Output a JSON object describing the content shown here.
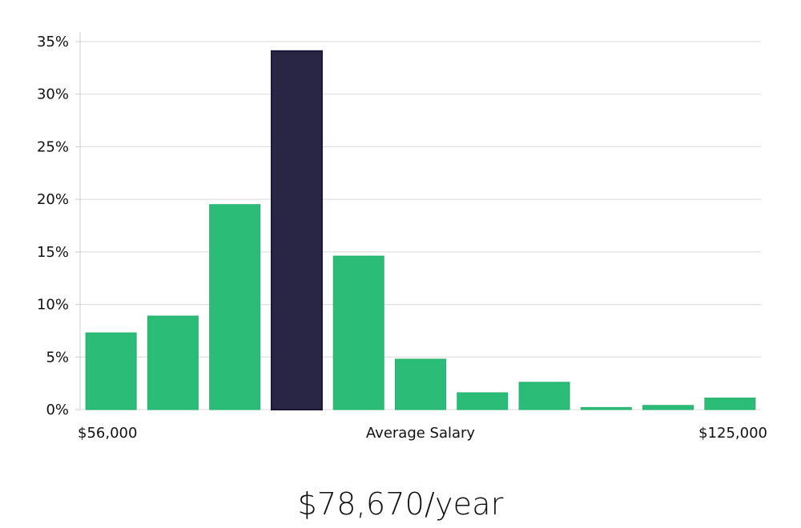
{
  "chart_data": {
    "type": "bar",
    "title": "",
    "xlabel": "Average Salary",
    "ylabel": "",
    "x_min_label": "$56,000",
    "x_max_label": "$125,000",
    "ylim": [
      0,
      35
    ],
    "yticks": [
      0,
      5,
      10,
      15,
      20,
      25,
      30,
      35
    ],
    "ytick_labels": [
      "0%",
      "5%",
      "10%",
      "15%",
      "20%",
      "25%",
      "30%",
      "35%"
    ],
    "grid": true,
    "values": [
      7.3,
      8.9,
      19.5,
      34.1,
      14.6,
      4.8,
      1.6,
      2.6,
      0.2,
      0.4,
      1.1
    ],
    "highlight_index": 3,
    "colors": {
      "bar": "#2bbd77",
      "highlight": "#292645",
      "grid": "#dadada",
      "axis": "#cccccc",
      "text": "#111111"
    }
  },
  "salary": {
    "display": "$78,670/year"
  }
}
